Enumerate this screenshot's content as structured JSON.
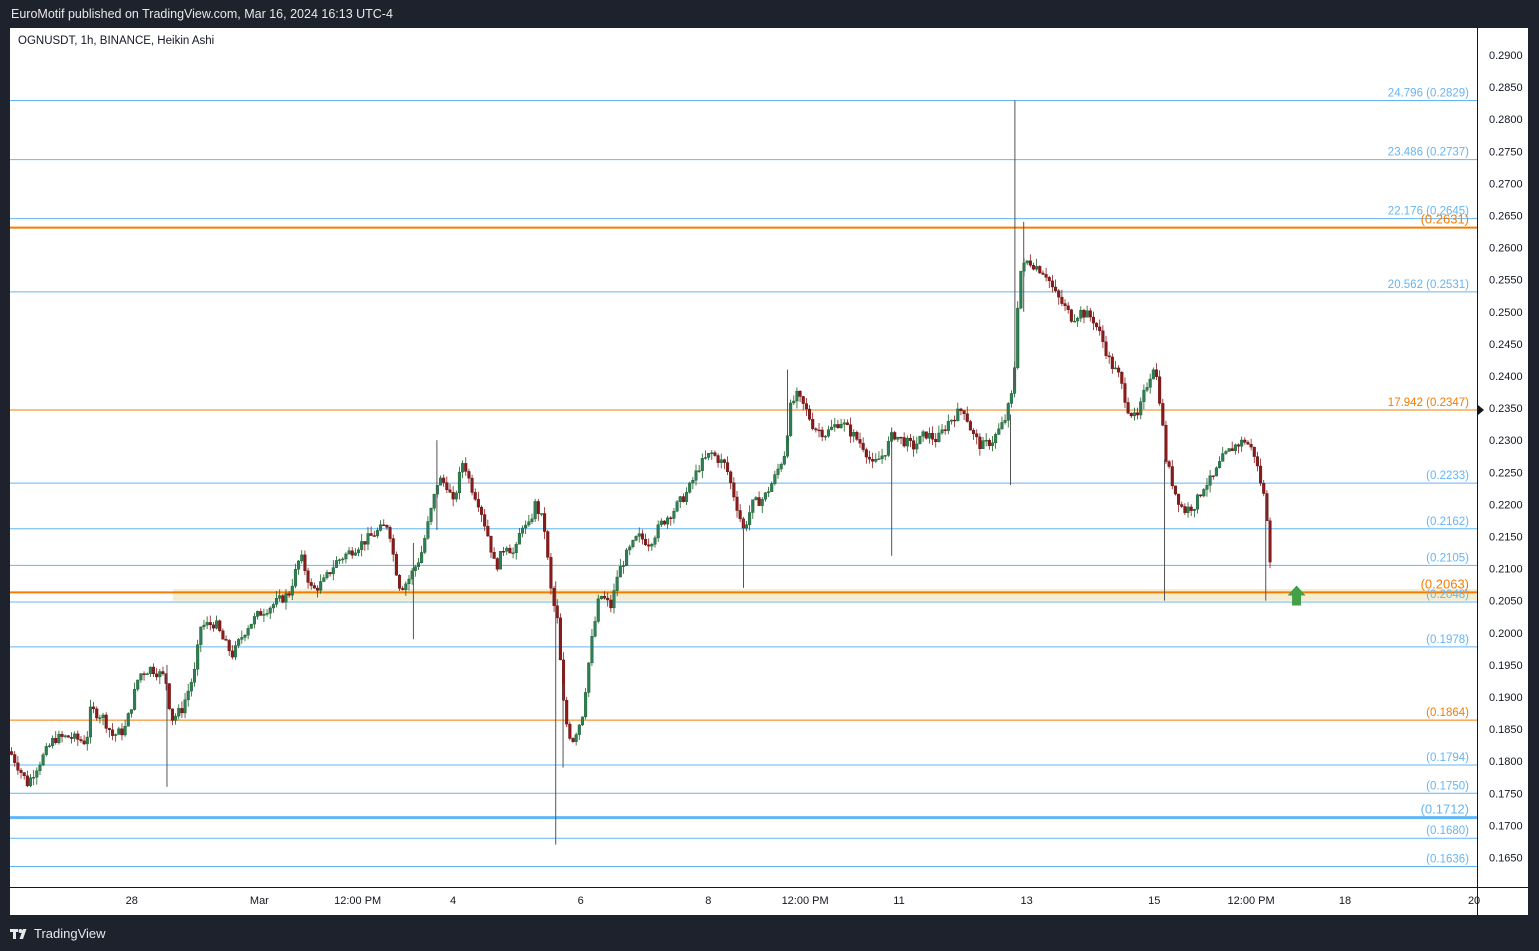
{
  "header": {
    "publisher_text": "EuroMotif published on TradingView.com, Mar 16, 2024 16:13 UTC-4"
  },
  "footer": {
    "brand_text": "TradingView"
  },
  "symbol_label": "OGNUSDT, 1h, BINANCE, Heikin Ashi",
  "colors": {
    "up": "#26a69a",
    "up_dark": "#1b5e20",
    "down": "#8b1a1a",
    "fib": "#64b5f6",
    "orange": "#f57c00",
    "arrow": "#43a047",
    "zone": "#f3e8c4"
  },
  "chart_data": {
    "type": "candlestick",
    "title": "OGNUSDT, 1h, BINANCE, Heikin Ashi",
    "ylim": [
      0.1604,
      0.2942
    ],
    "y_ticks": [
      "0.2900",
      "0.2850",
      "0.2800",
      "0.2750",
      "0.2700",
      "0.2650",
      "0.2600",
      "0.2550",
      "0.2500",
      "0.2450",
      "0.2400",
      "0.2350",
      "0.2300",
      "0.2250",
      "0.2200",
      "0.2150",
      "0.2100",
      "0.2050",
      "0.2000",
      "0.1950",
      "0.1900",
      "0.1850",
      "0.1800",
      "0.1750",
      "0.1700",
      "0.1650"
    ],
    "x_ticks": [
      {
        "label": "28",
        "t": 0.083
      },
      {
        "label": "Mar",
        "t": 0.17
      },
      {
        "label": "12:00 PM",
        "t": 0.237
      },
      {
        "label": "4",
        "t": 0.302
      },
      {
        "label": "6",
        "t": 0.389
      },
      {
        "label": "8",
        "t": 0.476
      },
      {
        "label": "12:00 PM",
        "t": 0.542
      },
      {
        "label": "11",
        "t": 0.606
      },
      {
        "label": "13",
        "t": 0.693
      },
      {
        "label": "15",
        "t": 0.78
      },
      {
        "label": "12:00 PM",
        "t": 0.846
      },
      {
        "label": "18",
        "t": 0.91
      },
      {
        "label": "20",
        "t": 0.998
      }
    ],
    "horizontal_levels": [
      {
        "price": 0.2829,
        "label": "24.796 (0.2829)",
        "color": "fib",
        "width": 1
      },
      {
        "price": 0.2737,
        "label": "23.486 (0.2737)",
        "color": "fib",
        "width": 1
      },
      {
        "price": 0.2645,
        "label": "22.176 (0.2645)",
        "color": "fib",
        "width": 1
      },
      {
        "price": 0.2631,
        "label": "(0.2631)",
        "color": "orange",
        "width": 2
      },
      {
        "price": 0.2531,
        "label": "20.562 (0.2531)",
        "color": "fib",
        "width": 1
      },
      {
        "price": 0.2347,
        "label": "17.942 (0.2347)",
        "color": "orange",
        "width": 1
      },
      {
        "price": 0.2233,
        "label": "(0.2233)",
        "color": "fib",
        "width": 1
      },
      {
        "price": 0.2162,
        "label": "(0.2162)",
        "color": "fib",
        "width": 1
      },
      {
        "price": 0.2105,
        "label": "(0.2105)",
        "color": "fib",
        "width": 1
      },
      {
        "price": 0.2063,
        "label": "(0.2063)",
        "color": "orange",
        "width": 2
      },
      {
        "price": 0.2048,
        "label": "(0.2048)",
        "color": "fib",
        "width": 1
      },
      {
        "price": 0.1978,
        "label": "(0.1978)",
        "color": "fib",
        "width": 1
      },
      {
        "price": 0.1864,
        "label": "(0.1864)",
        "color": "orange",
        "width": 1
      },
      {
        "price": 0.1794,
        "label": "(0.1794)",
        "color": "fib",
        "width": 1
      },
      {
        "price": 0.175,
        "label": "(0.1750)",
        "color": "fib",
        "width": 1
      },
      {
        "price": 0.1712,
        "label": "(0.1712)",
        "color": "fib",
        "width": 3
      },
      {
        "price": 0.168,
        "label": "(0.1680)",
        "color": "fib",
        "width": 1
      },
      {
        "price": 0.1636,
        "label": "(0.1636)",
        "color": "fib",
        "width": 1
      }
    ],
    "support_zone": {
      "from_t": 0.111,
      "low": 0.205,
      "high": 0.2068
    },
    "price_marker": 0.2347,
    "long_arrow": {
      "t": 0.877,
      "price": 0.2058
    },
    "path": [
      [
        0.0,
        0.1815
      ],
      [
        0.012,
        0.1765
      ],
      [
        0.018,
        0.179
      ],
      [
        0.03,
        0.1835
      ],
      [
        0.04,
        0.1838
      ],
      [
        0.052,
        0.183
      ],
      [
        0.055,
        0.188
      ],
      [
        0.063,
        0.187
      ],
      [
        0.07,
        0.184
      ],
      [
        0.078,
        0.1848
      ],
      [
        0.082,
        0.188
      ],
      [
        0.088,
        0.1935
      ],
      [
        0.096,
        0.1945
      ],
      [
        0.106,
        0.193
      ],
      [
        0.11,
        0.1865
      ],
      [
        0.117,
        0.188
      ],
      [
        0.126,
        0.194
      ],
      [
        0.13,
        0.201
      ],
      [
        0.14,
        0.2015
      ],
      [
        0.146,
        0.1985
      ],
      [
        0.152,
        0.1965
      ],
      [
        0.157,
        0.199
      ],
      [
        0.162,
        0.201
      ],
      [
        0.17,
        0.203
      ],
      [
        0.18,
        0.2045
      ],
      [
        0.19,
        0.206
      ],
      [
        0.198,
        0.212
      ],
      [
        0.206,
        0.2065
      ],
      [
        0.214,
        0.208
      ],
      [
        0.222,
        0.211
      ],
      [
        0.234,
        0.213
      ],
      [
        0.246,
        0.215
      ],
      [
        0.258,
        0.217
      ],
      [
        0.262,
        0.211
      ],
      [
        0.266,
        0.207
      ],
      [
        0.271,
        0.208
      ],
      [
        0.28,
        0.212
      ],
      [
        0.286,
        0.218
      ],
      [
        0.292,
        0.224
      ],
      [
        0.298,
        0.223
      ],
      [
        0.302,
        0.22
      ],
      [
        0.309,
        0.227
      ],
      [
        0.314,
        0.223
      ],
      [
        0.32,
        0.22
      ],
      [
        0.326,
        0.215
      ],
      [
        0.331,
        0.21
      ],
      [
        0.338,
        0.214
      ],
      [
        0.344,
        0.212
      ],
      [
        0.349,
        0.217
      ],
      [
        0.353,
        0.216
      ],
      [
        0.358,
        0.22
      ],
      [
        0.364,
        0.217
      ],
      [
        0.369,
        0.206
      ],
      [
        0.373,
        0.202
      ],
      [
        0.378,
        0.187
      ],
      [
        0.383,
        0.183
      ],
      [
        0.39,
        0.187
      ],
      [
        0.396,
        0.198
      ],
      [
        0.402,
        0.206
      ],
      [
        0.41,
        0.204
      ],
      [
        0.414,
        0.209
      ],
      [
        0.42,
        0.212
      ],
      [
        0.428,
        0.215
      ],
      [
        0.436,
        0.214
      ],
      [
        0.444,
        0.217
      ],
      [
        0.452,
        0.219
      ],
      [
        0.462,
        0.222
      ],
      [
        0.47,
        0.226
      ],
      [
        0.478,
        0.228
      ],
      [
        0.488,
        0.226
      ],
      [
        0.494,
        0.221
      ],
      [
        0.5,
        0.216
      ],
      [
        0.506,
        0.22
      ],
      [
        0.514,
        0.221
      ],
      [
        0.521,
        0.224
      ],
      [
        0.528,
        0.228
      ],
      [
        0.532,
        0.235
      ],
      [
        0.536,
        0.237
      ],
      [
        0.542,
        0.235
      ],
      [
        0.548,
        0.232
      ],
      [
        0.556,
        0.231
      ],
      [
        0.566,
        0.233
      ],
      [
        0.574,
        0.231
      ],
      [
        0.582,
        0.229
      ],
      [
        0.588,
        0.226
      ],
      [
        0.596,
        0.228
      ],
      [
        0.602,
        0.231
      ],
      [
        0.608,
        0.23
      ],
      [
        0.616,
        0.229
      ],
      [
        0.624,
        0.231
      ],
      [
        0.632,
        0.23
      ],
      [
        0.64,
        0.233
      ],
      [
        0.65,
        0.235
      ],
      [
        0.656,
        0.231
      ],
      [
        0.662,
        0.229
      ],
      [
        0.67,
        0.23
      ],
      [
        0.678,
        0.233
      ],
      [
        0.684,
        0.238
      ],
      [
        0.688,
        0.256
      ],
      [
        0.694,
        0.258
      ],
      [
        0.7,
        0.257
      ],
      [
        0.706,
        0.256
      ],
      [
        0.712,
        0.253
      ],
      [
        0.718,
        0.251
      ],
      [
        0.724,
        0.249
      ],
      [
        0.73,
        0.25
      ],
      [
        0.738,
        0.249
      ],
      [
        0.744,
        0.246
      ],
      [
        0.75,
        0.242
      ],
      [
        0.756,
        0.24
      ],
      [
        0.762,
        0.235
      ],
      [
        0.768,
        0.233
      ],
      [
        0.774,
        0.238
      ],
      [
        0.78,
        0.242
      ],
      [
        0.784,
        0.236
      ],
      [
        0.788,
        0.227
      ],
      [
        0.794,
        0.222
      ],
      [
        0.8,
        0.219
      ],
      [
        0.808,
        0.22
      ],
      [
        0.814,
        0.223
      ],
      [
        0.82,
        0.224
      ],
      [
        0.826,
        0.227
      ],
      [
        0.834,
        0.229
      ],
      [
        0.842,
        0.23
      ],
      [
        0.848,
        0.228
      ],
      [
        0.852,
        0.224
      ],
      [
        0.856,
        0.22
      ],
      [
        0.858,
        0.215
      ],
      [
        0.86,
        0.208
      ]
    ],
    "spikes": [
      {
        "t": 0.685,
        "high": 0.2829,
        "low": 0.238
      },
      {
        "t": 0.691,
        "high": 0.264,
        "low": 0.25
      },
      {
        "t": 0.372,
        "high": 0.208,
        "low": 0.167
      },
      {
        "t": 0.377,
        "high": 0.192,
        "low": 0.179
      },
      {
        "t": 0.107,
        "high": 0.195,
        "low": 0.176
      },
      {
        "t": 0.275,
        "high": 0.214,
        "low": 0.199
      },
      {
        "t": 0.5,
        "high": 0.218,
        "low": 0.207
      },
      {
        "t": 0.601,
        "high": 0.232,
        "low": 0.212
      },
      {
        "t": 0.682,
        "high": 0.234,
        "low": 0.223
      },
      {
        "t": 0.787,
        "high": 0.227,
        "low": 0.205
      },
      {
        "t": 0.856,
        "high": 0.221,
        "low": 0.205
      },
      {
        "t": 0.291,
        "high": 0.23,
        "low": 0.216
      },
      {
        "t": 0.53,
        "high": 0.241,
        "low": 0.229
      }
    ]
  }
}
